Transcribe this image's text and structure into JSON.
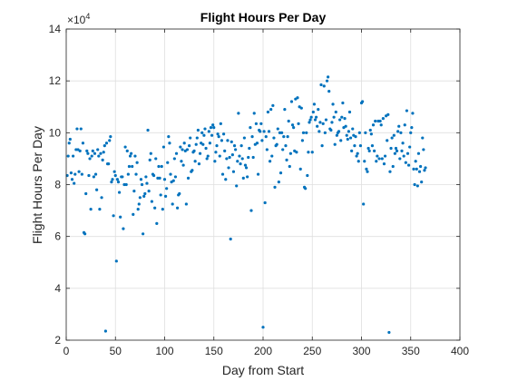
{
  "chart_data": {
    "type": "scatter",
    "title": "Flight Hours Per Day",
    "xlabel": "Day from Start",
    "ylabel": "Flight Hours Per Day",
    "xlim": [
      0,
      400
    ],
    "ylim": [
      2,
      14
    ],
    "y_exponent_base": "×10",
    "y_exponent_power": "4",
    "xticks": [
      "0",
      "50",
      "100",
      "150",
      "200",
      "250",
      "300",
      "350",
      "400"
    ],
    "yticks": [
      "2",
      "4",
      "6",
      "8",
      "10",
      "12",
      "14"
    ],
    "grid": true,
    "marker_color": "#0072BD",
    "series": [
      {
        "x": [
          1,
          2,
          3,
          4,
          5,
          6,
          7,
          8,
          9,
          10,
          11,
          12,
          13,
          14,
          15,
          16,
          17,
          18,
          19,
          20,
          21,
          22,
          23,
          24,
          25,
          26,
          27,
          28,
          29,
          30,
          31,
          32,
          33,
          34,
          35,
          36,
          37,
          38,
          39,
          40,
          41,
          42,
          43,
          44,
          45,
          46,
          47,
          48,
          49,
          50,
          51,
          52,
          53,
          54,
          55,
          56,
          57,
          58,
          59,
          60,
          61,
          62,
          63,
          64,
          65,
          66,
          67,
          68,
          69,
          70,
          71,
          72,
          73,
          74,
          75,
          76,
          77,
          78,
          79,
          80,
          81,
          82,
          83,
          84,
          85,
          86,
          87,
          88,
          89,
          90,
          91,
          92,
          93,
          94,
          95,
          96,
          97,
          98,
          99,
          100,
          101,
          102,
          103,
          104,
          105,
          106,
          107,
          108,
          109,
          110,
          111,
          112,
          113,
          114,
          115,
          116,
          117,
          118,
          119,
          120,
          121,
          122,
          123,
          124,
          125,
          126,
          127,
          128,
          129,
          130,
          131,
          132,
          133,
          134,
          135,
          136,
          137,
          138,
          139,
          140,
          141,
          142,
          143,
          144,
          145,
          146,
          147,
          148,
          149,
          150,
          151,
          152,
          153,
          154,
          155,
          156,
          157,
          158,
          159,
          160,
          161,
          162,
          163,
          164,
          165,
          166,
          167,
          168,
          169,
          170,
          171,
          172,
          173,
          174,
          175,
          176,
          177,
          178,
          179,
          180,
          181,
          182,
          183,
          184,
          185,
          186,
          187,
          188,
          189,
          190,
          191,
          192,
          193,
          194,
          195,
          196,
          197,
          198,
          199,
          200,
          201,
          202,
          203,
          204,
          205,
          206,
          207,
          208,
          209,
          210,
          211,
          212,
          213,
          214,
          215,
          216,
          217,
          218,
          219,
          220,
          221,
          222,
          223,
          224,
          225,
          226,
          227,
          228,
          229,
          230,
          231,
          232,
          233,
          234,
          235,
          236,
          237,
          238,
          239,
          240,
          241,
          242,
          243,
          244,
          245,
          246,
          247,
          248,
          249,
          250,
          251,
          252,
          253,
          254,
          255,
          256,
          257,
          258,
          259,
          260,
          261,
          262,
          263,
          264,
          265,
          266,
          267,
          268,
          269,
          270,
          271,
          272,
          273,
          274,
          275,
          276,
          277,
          278,
          279,
          280,
          281,
          282,
          283,
          284,
          285,
          286,
          287,
          288,
          289,
          290,
          291,
          292,
          293,
          294,
          295,
          296,
          297,
          298,
          299,
          300,
          301,
          302,
          303,
          304,
          305,
          306,
          307,
          308,
          309,
          310,
          311,
          312,
          313,
          314,
          315,
          316,
          317,
          318,
          319,
          320,
          321,
          322,
          323,
          324,
          325,
          326,
          327,
          328,
          329,
          330,
          331,
          332,
          333,
          334,
          335,
          336,
          337,
          338,
          339,
          340,
          341,
          342,
          343,
          344,
          345,
          346,
          347,
          348,
          349,
          350,
          351,
          352,
          353,
          354,
          355,
          356,
          357,
          358,
          359,
          360,
          361,
          362,
          363,
          364,
          365
        ],
        "y": [
          8.35,
          9.1,
          9.6,
          9.75,
          8.45,
          8.2,
          9.1,
          8.05,
          8.4,
          9.35,
          10.15,
          9.35,
          8.5,
          9.3,
          10.15,
          8.4,
          9.6,
          6.15,
          6.1,
          7.65,
          9.3,
          9.2,
          8.35,
          9.0,
          7.05,
          9.1,
          9.3,
          8.3,
          9.2,
          8.4,
          7.8,
          9.35,
          9.1,
          7.05,
          9.2,
          7.5,
          8.95,
          9.25,
          9.5,
          2.35,
          9.6,
          8.8,
          8.8,
          9.7,
          9.85,
          8.1,
          8.2,
          6.8,
          8.5,
          8.35,
          5.05,
          8.2,
          8.1,
          7.7,
          6.75,
          8.3,
          8.3,
          6.3,
          8.0,
          9.45,
          8.0,
          9.3,
          8.4,
          8.7,
          9.1,
          9.2,
          8.7,
          6.85,
          7.75,
          9.1,
          8.4,
          8.85,
          7.05,
          7.25,
          7.5,
          8.2,
          8.0,
          6.1,
          7.55,
          7.65,
          8.3,
          8.05,
          10.1,
          7.75,
          8.95,
          9.2,
          7.35,
          8.4,
          8.35,
          7.1,
          9.0,
          6.5,
          8.25,
          8.7,
          8.25,
          7.6,
          8.7,
          7.05,
          9.45,
          8.2,
          7.55,
          7.85,
          8.85,
          9.85,
          9.6,
          8.4,
          8.1,
          7.25,
          8.15,
          9.0,
          8.3,
          9.2,
          7.1,
          7.6,
          7.65,
          9.45,
          8.9,
          9.35,
          8.75,
          9.6,
          9.3,
          7.25,
          9.35,
          8.25,
          9.5,
          9.8,
          8.5,
          8.55,
          9.25,
          9.3,
          8.9,
          9.55,
          9.8,
          10.1,
          8.8,
          9.2,
          9.6,
          10.0,
          9.55,
          9.9,
          10.15,
          9.4,
          9.0,
          9.1,
          10.05,
          9.6,
          10.2,
          9.9,
          10.3,
          10.2,
          8.9,
          9.25,
          9.5,
          9.95,
          9.85,
          9.1,
          10.35,
          9.7,
          8.4,
          9.95,
          9.3,
          8.2,
          9.0,
          9.7,
          8.65,
          9.05,
          5.9,
          9.65,
          9.15,
          8.5,
          9.5,
          9.35,
          7.95,
          8.9,
          10.75,
          9.1,
          8.8,
          9.5,
          9.0,
          8.25,
          9.8,
          8.75,
          8.65,
          8.3,
          9.05,
          9.4,
          10.2,
          7.0,
          9.85,
          9.05,
          10.75,
          9.55,
          10.35,
          9.6,
          8.4,
          10.1,
          10.05,
          10.35,
          9.7,
          2.5,
          10.05,
          7.3,
          9.85,
          9.35,
          10.8,
          10.05,
          8.9,
          10.9,
          9.1,
          11.05,
          9.8,
          7.9,
          9.5,
          9.55,
          10.15,
          8.1,
          10.0,
          8.45,
          10.0,
          9.35,
          9.85,
          10.9,
          9.5,
          8.95,
          9.85,
          10.45,
          8.7,
          9.2,
          11.2,
          10.3,
          10.2,
          9.3,
          11.3,
          9.25,
          11.35,
          10.35,
          11.0,
          8.6,
          10.95,
          9.7,
          10.0,
          7.9,
          7.85,
          10.0,
          8.35,
          9.25,
          10.4,
          10.5,
          10.6,
          9.25,
          10.8,
          11.1,
          10.5,
          10.6,
          10.25,
          10.9,
          10.05,
          10.4,
          11.85,
          9.5,
          10.35,
          11.8,
          10.0,
          10.5,
          12.0,
          12.15,
          11.6,
          10.15,
          10.1,
          10.4,
          11.1,
          10.6,
          9.55,
          10.8,
          9.9,
          10.0,
          10.05,
          10.5,
          9.7,
          10.6,
          11.15,
          10.2,
          10.55,
          10.25,
          9.9,
          9.75,
          10.05,
          10.8,
          9.8,
          9.3,
          10.15,
          9.9,
          9.5,
          9.85,
          9.1,
          9.2,
          8.9,
          10.0,
          9.5,
          11.15,
          11.2,
          7.25,
          8.9,
          10.0,
          8.6,
          8.5,
          9.4,
          9.3,
          10.1,
          9.95,
          9.5,
          10.3,
          9.3,
          10.45,
          8.9,
          9.1,
          10.45,
          9.0,
          10.45,
          10.3,
          9.0,
          10.55,
          8.8,
          9.1,
          10.65,
          9.7,
          10.7,
          2.3,
          8.5,
          9.4,
          9.8,
          8.7,
          9.9,
          9.2,
          9.4,
          9.3,
          10.05,
          10.25,
          9.0,
          10.0,
          9.3,
          9.6,
          9.1,
          10.3,
          8.85,
          10.85,
          9.2,
          8.75,
          9.45,
          10.0,
          10.2,
          10.75,
          8.6,
          8.0,
          8.9,
          8.6,
          7.95,
          9.2,
          8.5,
          8.7,
          8.1,
          9.8,
          9.35,
          8.55,
          8.65
        ]
      }
    ]
  }
}
